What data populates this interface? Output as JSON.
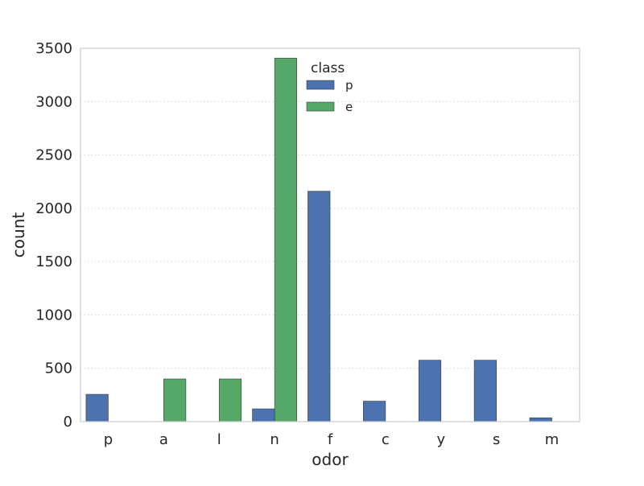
{
  "chart_data": {
    "type": "bar",
    "title": "",
    "xlabel": "odor",
    "ylabel": "count",
    "categories": [
      "p",
      "a",
      "l",
      "n",
      "f",
      "c",
      "y",
      "s",
      "m"
    ],
    "series": [
      {
        "name": "p",
        "color": "#4C72B0",
        "values": [
          256,
          0,
          0,
          120,
          2160,
          192,
          576,
          576,
          36
        ]
      },
      {
        "name": "e",
        "color": "#55A868",
        "values": [
          0,
          400,
          400,
          3408,
          0,
          0,
          0,
          0,
          0
        ]
      }
    ],
    "ylim": [
      0,
      3500
    ],
    "yticks": [
      0,
      500,
      1000,
      1500,
      2000,
      2500,
      3000,
      3500
    ],
    "grid": "horizontal dotted",
    "legend": {
      "title": "class",
      "placement": "top-center"
    }
  }
}
